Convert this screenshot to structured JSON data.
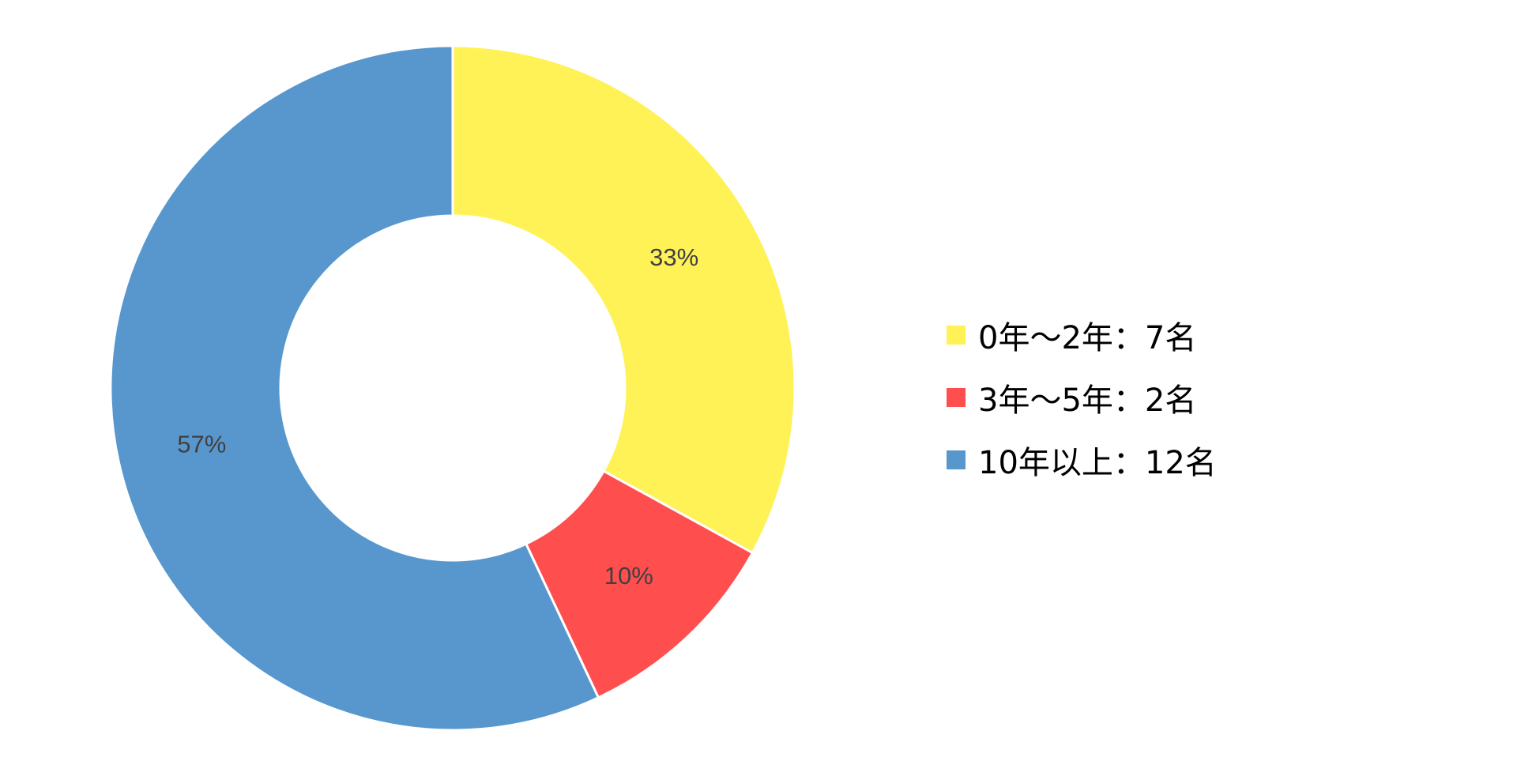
{
  "chart_data": {
    "type": "pie",
    "variant": "donut",
    "title": "",
    "slices": [
      {
        "label": "0年〜2年：7名",
        "count": 7,
        "percent_label": "33%",
        "value": 33,
        "color": "#FFF257"
      },
      {
        "label": "3年〜5年：2名",
        "count": 2,
        "percent_label": "10%",
        "value": 10,
        "color": "#FF4E4E"
      },
      {
        "label": "10年以上：12名",
        "count": 12,
        "percent_label": "57%",
        "value": 57,
        "color": "#5897CD"
      }
    ],
    "legend_position": "right"
  }
}
